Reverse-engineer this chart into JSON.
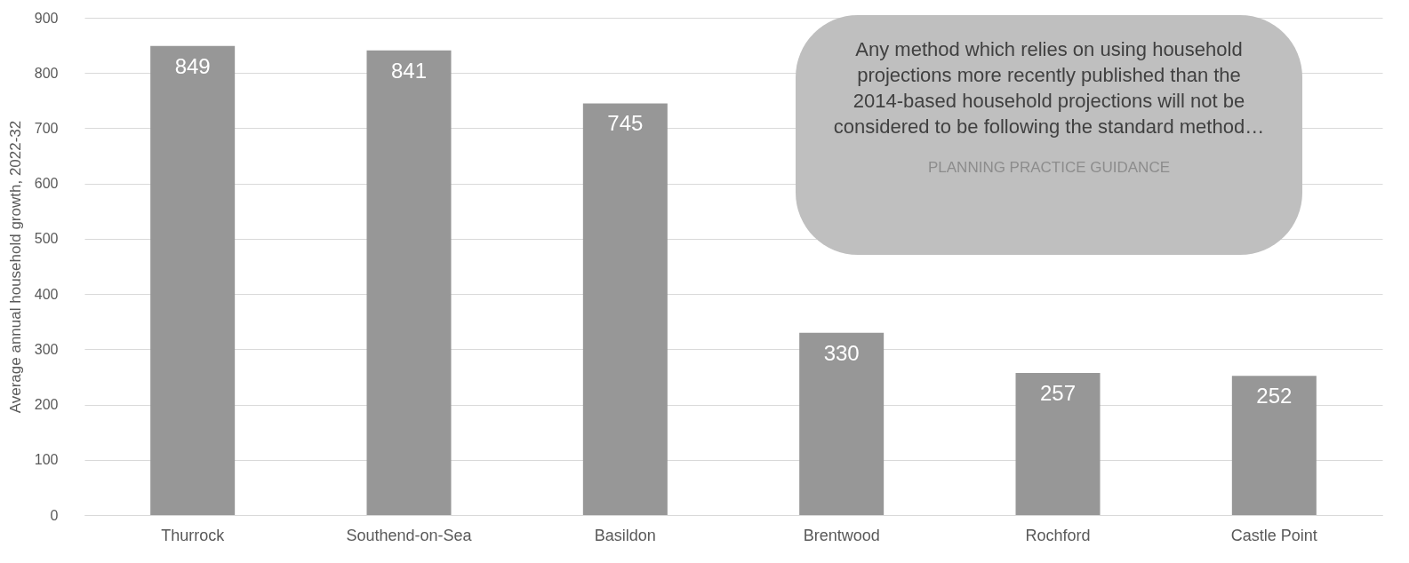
{
  "chart_data": {
    "type": "bar",
    "ylabel": "Average annual household growth, 2022-32",
    "categories": [
      "Thurrock",
      "Southend-on-Sea",
      "Basildon",
      "Brentwood",
      "Rochford",
      "Castle Point"
    ],
    "values": [
      849,
      841,
      745,
      330,
      257,
      252
    ],
    "color": "#979797",
    "ylim": [
      0,
      900
    ],
    "yticks": [
      0,
      100,
      200,
      300,
      400,
      500,
      600,
      700,
      800,
      900
    ],
    "grid": "y",
    "data_labels": true,
    "annotations": [
      "Any method which relies on using household projections more recently published than the 2014-based household projections will not be considered to be following the standard method…",
      "PLANNING PRACTICE GUIDANCE"
    ]
  }
}
